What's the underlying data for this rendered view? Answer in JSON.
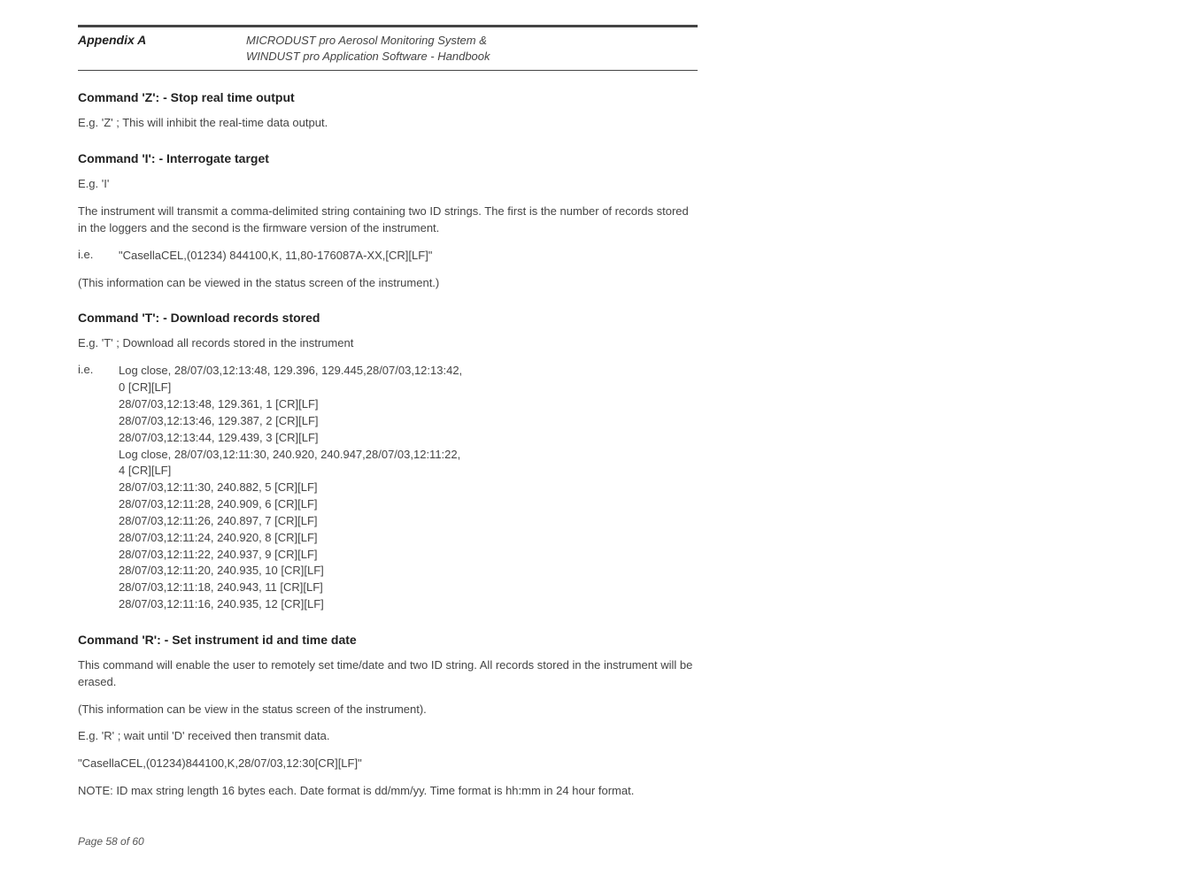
{
  "header": {
    "appendix": "Appendix A",
    "title_line1": "MICRODUST pro Aerosol Monitoring System &",
    "title_line2": "WINDUST pro Application Software - Handbook"
  },
  "sections": {
    "z": {
      "heading": "Command 'Z': - Stop real time output",
      "body": "E.g. 'Z' ; This will inhibit the real-time data output."
    },
    "i": {
      "heading": "Command 'I': - Interrogate target",
      "eg": "E.g. 'I'",
      "desc": "The instrument will transmit a comma-delimited string containing two ID strings. The first is the number of records stored in the loggers and the second is the firmware version of the instrument.",
      "ie_label": "i.e.",
      "ie_text": "\"CasellaCEL,(01234) 844100,K, 11,80-176087A-XX,[CR][LF]\"",
      "note": "(This information can be viewed in the status screen of the instrument.)"
    },
    "t": {
      "heading": "Command 'T': - Download records stored",
      "eg": "E.g. 'T' ; Download all records stored in the instrument",
      "ie_label": "i.e.",
      "log_lines": [
        "Log close, 28/07/03,12:13:48, 129.396, 129.445,28/07/03,12:13:42,",
        "0 [CR][LF]",
        "28/07/03,12:13:48, 129.361, 1 [CR][LF]",
        "28/07/03,12:13:46, 129.387, 2 [CR][LF]",
        "28/07/03,12:13:44, 129.439, 3 [CR][LF]",
        "Log close, 28/07/03,12:11:30, 240.920, 240.947,28/07/03,12:11:22,",
        "4 [CR][LF]",
        "28/07/03,12:11:30, 240.882, 5 [CR][LF]",
        "28/07/03,12:11:28, 240.909, 6 [CR][LF]",
        "28/07/03,12:11:26, 240.897, 7 [CR][LF]",
        "28/07/03,12:11:24, 240.920, 8 [CR][LF]",
        "28/07/03,12:11:22, 240.937, 9 [CR][LF]",
        "28/07/03,12:11:20, 240.935, 10 [CR][LF]",
        "28/07/03,12:11:18, 240.943, 11 [CR][LF]",
        "28/07/03,12:11:16, 240.935, 12 [CR][LF]"
      ]
    },
    "r": {
      "heading": "Command 'R': - Set instrument id and time date",
      "desc": "This command will enable the user to remotely set time/date and two ID string. All records stored in the instrument will be erased.",
      "note1": "(This information can be view in the status screen of the instrument).",
      "eg": "E.g. 'R' ; wait until 'D' received then transmit data.",
      "example": "\"CasellaCEL,(01234)844100,K,28/07/03,12:30[CR][LF]\"",
      "note2": "NOTE: ID max string length 16 bytes each. Date format is dd/mm/yy. Time format is hh:mm in 24 hour format."
    }
  },
  "footer": "Page 58 of 60"
}
